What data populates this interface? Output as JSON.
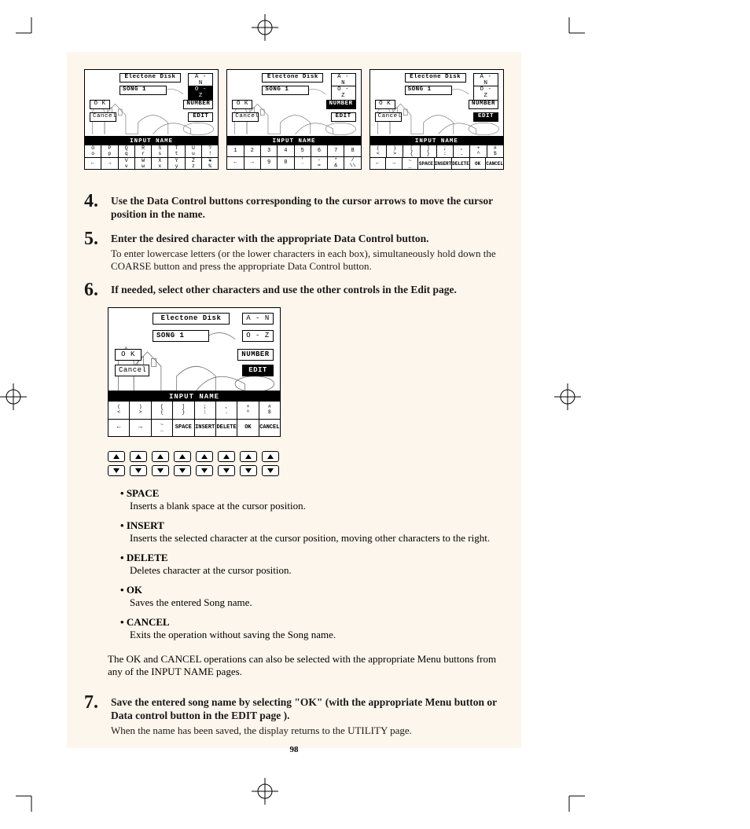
{
  "page_number": "98",
  "lcd_common": {
    "title": "Electone Disk",
    "song": "SONG 1",
    "an": "A - N",
    "oz": "O - Z",
    "number": "NUMBER",
    "edit": "EDIT",
    "ok": "O K",
    "cancel": "Cancel",
    "input_name": "INPUT NAME"
  },
  "panel1": {
    "active": "oz",
    "row1": [
      [
        "O",
        "o"
      ],
      [
        "P",
        "p"
      ],
      [
        "Q",
        "q"
      ],
      [
        "R",
        "r"
      ],
      [
        "S",
        "s"
      ],
      [
        "T",
        "t"
      ],
      [
        "U",
        "u"
      ],
      [
        "?",
        "!"
      ]
    ],
    "row2": [
      [
        "←",
        ""
      ],
      [
        "→",
        ""
      ],
      [
        "V",
        "v"
      ],
      [
        "W",
        "w"
      ],
      [
        "X",
        "x"
      ],
      [
        "Y",
        "y"
      ],
      [
        "Z",
        "z"
      ],
      [
        "¥",
        "%"
      ]
    ]
  },
  "panel2": {
    "active": "number",
    "row1": [
      [
        "1",
        ""
      ],
      [
        "2",
        ""
      ],
      [
        "3",
        ""
      ],
      [
        "4",
        ""
      ],
      [
        "5",
        ""
      ],
      [
        "6",
        ""
      ],
      [
        "7",
        ""
      ],
      [
        "8",
        ""
      ]
    ],
    "row2": [
      [
        "←",
        ""
      ],
      [
        "→",
        ""
      ],
      [
        "9",
        ""
      ],
      [
        "0",
        ""
      ],
      [
        "'",
        "¨"
      ],
      [
        "-",
        "="
      ],
      [
        "*",
        "&"
      ],
      [
        "/",
        "\\\\"
      ]
    ]
  },
  "panel3": {
    "active": "edit",
    "row1": [
      [
        "(",
        "<"
      ],
      [
        ")",
        ">"
      ],
      [
        "[",
        "{"
      ],
      [
        "]",
        "}"
      ],
      [
        ";",
        ":"
      ],
      [
        ",",
        "."
      ],
      [
        "+",
        "^"
      ],
      [
        "#",
        "$"
      ]
    ],
    "row2": [
      [
        "←",
        ""
      ],
      [
        "→",
        ""
      ],
      [
        "~",
        "_"
      ],
      [
        "SPACE",
        ""
      ],
      [
        "INSERT",
        ""
      ],
      [
        "DELETE",
        ""
      ],
      [
        "OK",
        ""
      ],
      [
        "CANCEL",
        ""
      ]
    ]
  },
  "big_panel": {
    "active": "edit",
    "row1": [
      [
        "(",
        "<"
      ],
      [
        ")",
        ">"
      ],
      [
        "[",
        "{"
      ],
      [
        "]",
        "}"
      ],
      [
        ";",
        ":"
      ],
      [
        ",",
        "."
      ],
      [
        "+",
        "^"
      ],
      [
        "#",
        "$"
      ]
    ],
    "row2": [
      [
        "←",
        ""
      ],
      [
        "→",
        ""
      ],
      [
        "~",
        "_"
      ],
      [
        "SPACE",
        ""
      ],
      [
        "INSERT",
        ""
      ],
      [
        "DELETE",
        ""
      ],
      [
        "OK",
        ""
      ],
      [
        "CANCEL",
        ""
      ]
    ]
  },
  "steps": {
    "s4": {
      "num": "4.",
      "head": "Use the Data Control buttons corresponding to the cursor arrows to move the cursor position in the name."
    },
    "s5": {
      "num": "5.",
      "head": "Enter the desired character with the appropriate Data Control button.",
      "sub": "To enter lowercase letters (or the lower characters in each box), simultaneously hold down the COARSE button and press the appropriate Data Control button."
    },
    "s6": {
      "num": "6.",
      "head": "If needed, select other characters and use the other controls in the Edit page."
    },
    "s7": {
      "num": "7.",
      "head": "Save the entered song name by selecting \"OK\" (with the appropriate Menu button or Data control button in the EDIT page ).",
      "sub": "When the name has been saved, the display returns to the UTILITY page."
    }
  },
  "button_strip": {
    "count": 8
  },
  "defs": [
    {
      "term": "SPACE",
      "text": "Inserts a blank space at the cursor position."
    },
    {
      "term": "INSERT",
      "text": "Inserts the selected character at the cursor position, moving other characters to the right."
    },
    {
      "term": "DELETE",
      "text": "Deletes character at the cursor position."
    },
    {
      "term": "OK",
      "text": "Saves the entered Song name."
    },
    {
      "term": "CANCEL",
      "text": "Exits the operation without saving the Song name."
    }
  ],
  "note": "The OK and CANCEL operations can also be selected with the appropriate Menu buttons from any of the INPUT NAME pages.",
  "colors": {
    "page_bg": "#fdf6ec",
    "text": "#1a1a1a",
    "panel_bg": "#ffffff",
    "black": "#000000"
  }
}
